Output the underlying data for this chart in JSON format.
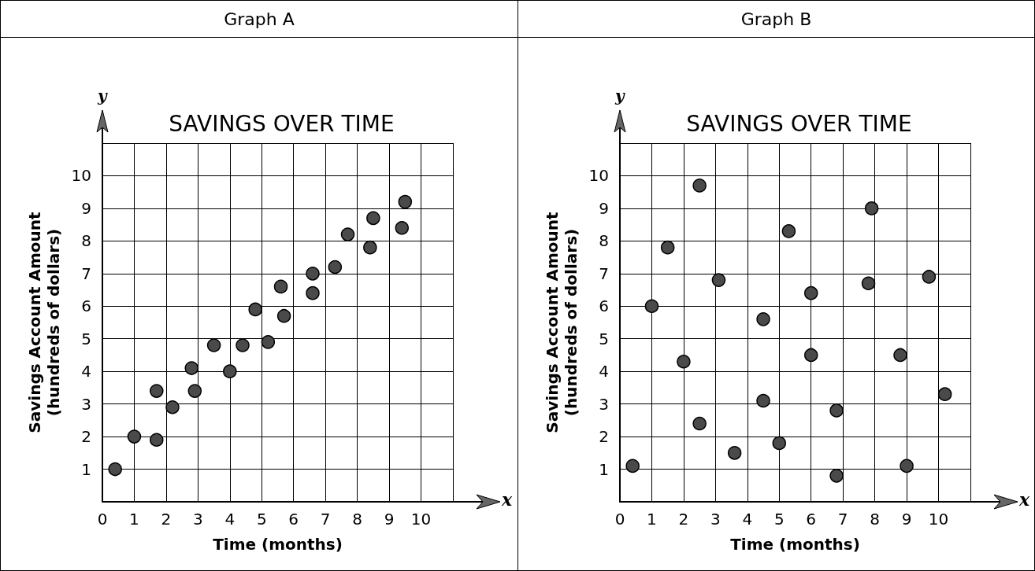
{
  "chart_data": [
    {
      "type": "scatter",
      "title": "Graph A",
      "subtitle": "SAVINGS OVER TIME",
      "xlabel": "Time (months)",
      "ylabel": "Savings Account Amount\n(hundreds of dollars)",
      "annotations": [
        "x",
        "y"
      ],
      "x": [
        0.4,
        1,
        1.7,
        1.7,
        2.2,
        2.8,
        2.9,
        3.5,
        4.0,
        4.4,
        4.8,
        5.2,
        5.6,
        5.7,
        6.6,
        6.6,
        7.3,
        7.7,
        8.4,
        8.5,
        9.4,
        9.5
      ],
      "values": [
        1.0,
        2.0,
        1.9,
        3.4,
        2.9,
        4.1,
        3.4,
        4.8,
        4.0,
        4.8,
        5.9,
        4.9,
        6.6,
        5.7,
        7.0,
        6.4,
        7.2,
        8.2,
        7.8,
        8.7,
        8.4,
        9.2
      ],
      "color": "#4a4a4a",
      "marker": "circle",
      "grid": true,
      "xlim": [
        0,
        11
      ],
      "xticks": [
        0,
        1,
        2,
        3,
        4,
        5,
        6,
        7,
        8,
        9,
        10,
        {
          "value": 11,
          "label": null
        }
      ],
      "ylim": [
        0,
        11
      ],
      "yticks": [
        1,
        2,
        3,
        4,
        5,
        6,
        7,
        8,
        9,
        10,
        {
          "value": 11,
          "label": null
        }
      ]
    },
    {
      "type": "scatter",
      "title": "Graph B",
      "subtitle": "SAVINGS OVER TIME",
      "xlabel": "Time (months)",
      "ylabel": "Savings Account Amount\n(hundreds of dollars)",
      "annotations": [
        "x",
        "y"
      ],
      "x": [
        0.4,
        1,
        1.5,
        2,
        2.5,
        2.5,
        3.1,
        3.6,
        4.5,
        4.5,
        5,
        5.3,
        6,
        6,
        6.8,
        6.8,
        7.8,
        7.9,
        8.8,
        9,
        9.7,
        10.2
      ],
      "values": [
        1.1,
        6.0,
        7.8,
        4.3,
        9.7,
        2.4,
        6.8,
        1.5,
        5.6,
        3.1,
        1.8,
        8.3,
        6.4,
        4.5,
        2.8,
        0.8,
        6.7,
        9.0,
        4.5,
        1.1,
        6.9,
        3.3
      ],
      "color": "#4a4a4a",
      "marker": "circle",
      "grid": true,
      "xlim": [
        0,
        11
      ],
      "xticks": [
        0,
        1,
        2,
        3,
        4,
        5,
        6,
        7,
        8,
        9,
        10,
        {
          "value": 11,
          "label": null
        }
      ],
      "ylim": [
        0,
        11
      ],
      "yticks": [
        1,
        2,
        3,
        4,
        5,
        6,
        7,
        8,
        9,
        10,
        {
          "value": 11,
          "label": null
        }
      ]
    }
  ]
}
